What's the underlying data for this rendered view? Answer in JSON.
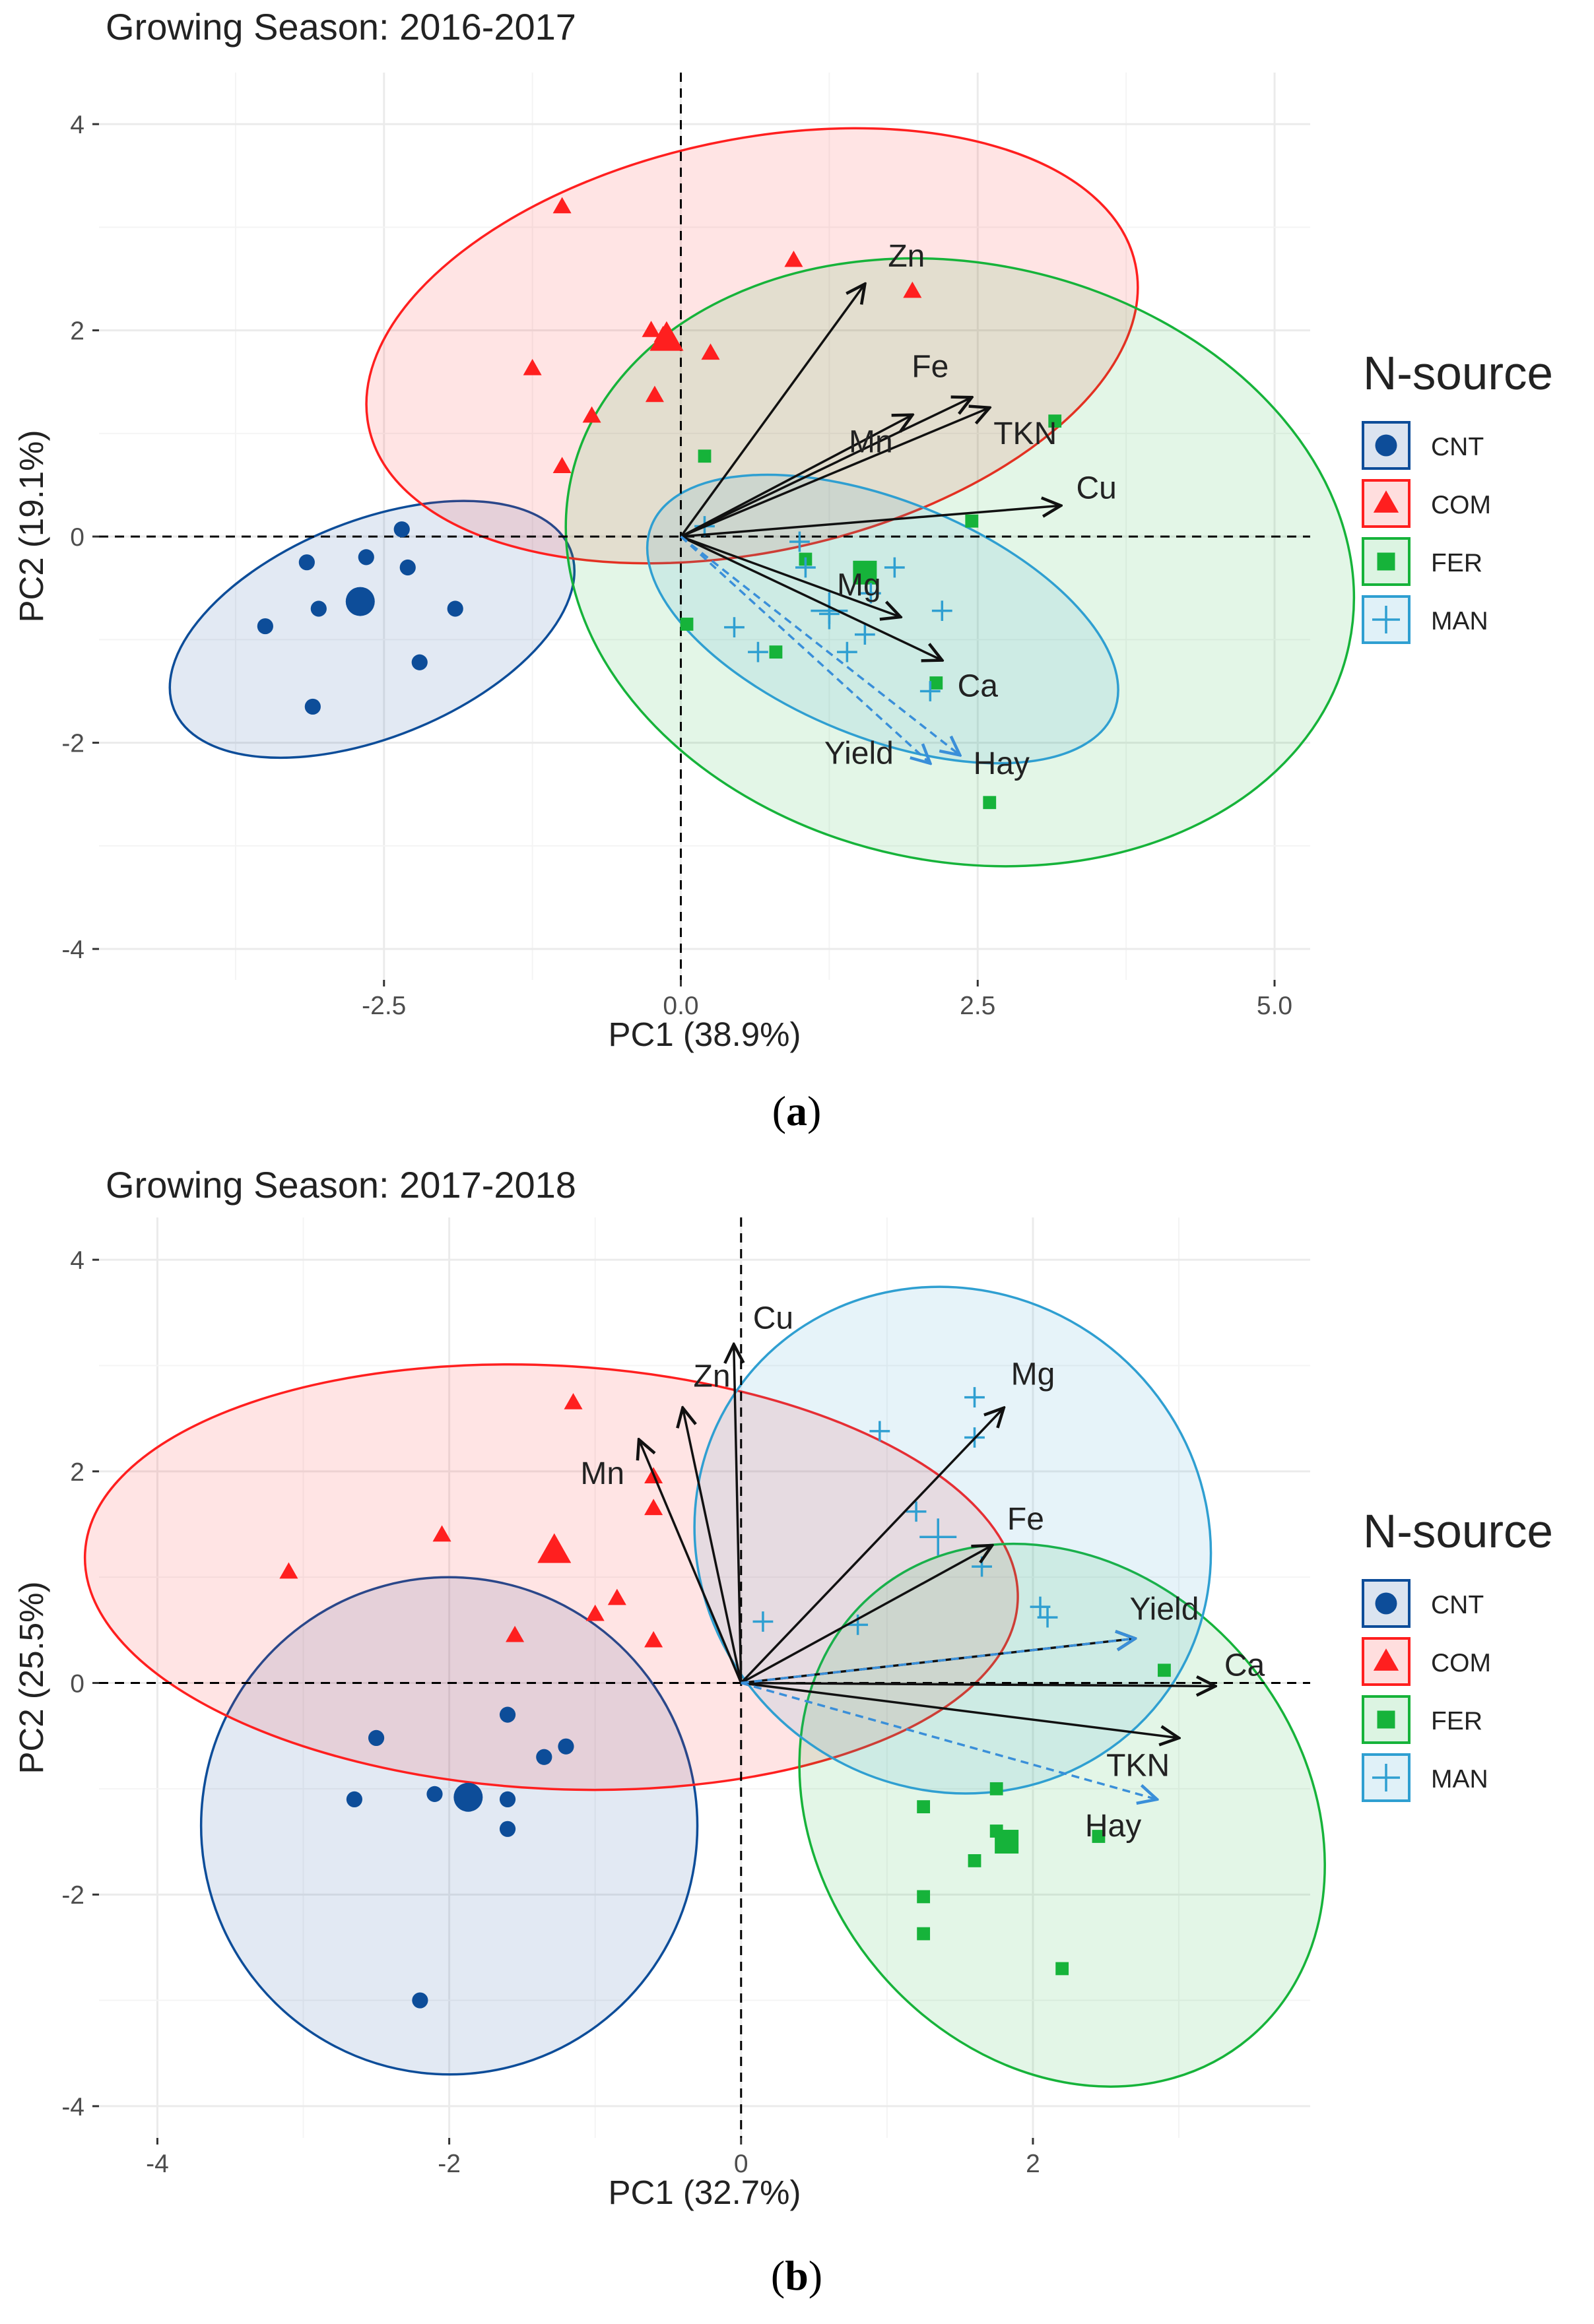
{
  "colors": {
    "CNT": "#0d4d99",
    "COM": "#ff1f1f",
    "FER": "#16b33a",
    "MAN": "#2f9fd1",
    "arrow": "#111111",
    "supplementary": "#3a8fd9"
  },
  "chart_data": [
    {
      "panel": "a",
      "type": "scatter",
      "subtype": "pca-biplot",
      "title": "Growing Season: 2016-2017",
      "caption": {
        "open": "(",
        "letter": "a",
        "close": ")"
      },
      "xlabel": "PC1 (38.9%)",
      "ylabel": "PC2 (19.1%)",
      "xlim": [
        -4.9,
        5.3
      ],
      "ylim": [
        -4.3,
        4.5
      ],
      "xticks": [
        -2.5,
        0.0,
        2.5,
        5.0
      ],
      "xtick_labels": [
        "-2.5",
        "0.0",
        "2.5",
        "5.0"
      ],
      "yticks": [
        -4,
        -2,
        0,
        2,
        4
      ],
      "ytick_labels": [
        "-4",
        "-2",
        "0",
        "2",
        "4"
      ],
      "legend": {
        "title": "N-source",
        "entries": [
          "CNT",
          "COM",
          "FER",
          "MAN"
        ],
        "shapes": [
          "circle",
          "triangle",
          "square",
          "plus"
        ],
        "position": "right"
      },
      "series": [
        {
          "name": "CNT",
          "marker": "circle",
          "points": [
            [
              -2.35,
              0.07
            ],
            [
              -3.15,
              -0.25
            ],
            [
              -2.65,
              -0.2
            ],
            [
              -2.3,
              -0.3
            ],
            [
              -3.05,
              -0.7
            ],
            [
              -1.9,
              -0.7
            ],
            [
              -3.5,
              -0.87
            ],
            [
              -2.2,
              -1.22
            ],
            [
              -3.1,
              -1.65
            ]
          ],
          "centroid": [
            -2.7,
            -0.63
          ],
          "ellipse": {
            "center": [
              -2.6,
              -0.9
            ],
            "rx": 1.8,
            "ry": 1.05,
            "rotation_deg": 22
          }
        },
        {
          "name": "COM",
          "marker": "triangle",
          "points": [
            [
              -1.0,
              3.2
            ],
            [
              0.95,
              2.68
            ],
            [
              1.95,
              2.38
            ],
            [
              -0.25,
              2.0
            ],
            [
              -0.15,
              1.95
            ],
            [
              0.25,
              1.78
            ],
            [
              -1.25,
              1.63
            ],
            [
              -0.22,
              1.37
            ],
            [
              -0.75,
              1.17
            ],
            [
              -1.0,
              0.68
            ]
          ],
          "centroid": [
            -0.12,
            1.92
          ],
          "ellipse": {
            "center": [
              0.6,
              1.85
            ],
            "rx": 3.3,
            "ry": 2.0,
            "rotation_deg": 12
          }
        },
        {
          "name": "FER",
          "marker": "square",
          "points": [
            [
              3.15,
              1.12
            ],
            [
              0.2,
              0.78
            ],
            [
              2.45,
              0.15
            ],
            [
              1.05,
              -0.22
            ],
            [
              1.55,
              -0.35
            ],
            [
              0.05,
              -0.85
            ],
            [
              0.8,
              -1.12
            ],
            [
              2.15,
              -1.42
            ],
            [
              2.6,
              -2.58
            ]
          ],
          "centroid": [
            1.55,
            -0.35
          ],
          "ellipse": {
            "center": [
              2.35,
              -0.25
            ],
            "rx": 3.35,
            "ry": 2.9,
            "rotation_deg": -12
          }
        },
        {
          "name": "MAN",
          "marker": "plus",
          "points": [
            [
              0.2,
              0.1
            ],
            [
              1.0,
              -0.05
            ],
            [
              1.8,
              -0.3
            ],
            [
              1.05,
              -0.3
            ],
            [
              1.6,
              -0.55
            ],
            [
              2.2,
              -0.72
            ],
            [
              1.25,
              -0.75
            ],
            [
              0.45,
              -0.88
            ],
            [
              1.55,
              -0.95
            ],
            [
              0.65,
              -1.12
            ],
            [
              1.4,
              -1.12
            ],
            [
              2.1,
              -1.5
            ]
          ],
          "centroid": [
            1.25,
            -0.72
          ],
          "ellipse": {
            "center": [
              1.7,
              -0.8
            ],
            "rx": 2.1,
            "ry": 1.15,
            "rotation_deg": -22
          }
        }
      ],
      "vectors": [
        {
          "label": "Zn",
          "x": 1.55,
          "y": 2.45,
          "label_xy": [
            1.9,
            2.72
          ]
        },
        {
          "label": "Fe",
          "x": 2.45,
          "y": 1.35,
          "label_xy": [
            2.1,
            1.65
          ]
        },
        {
          "label": "TKN",
          "x": 2.6,
          "y": 1.25,
          "label_xy": [
            2.9,
            1.0
          ]
        },
        {
          "label": "Mn",
          "x": 1.95,
          "y": 1.18,
          "label_xy": [
            1.6,
            0.92
          ]
        },
        {
          "label": "Cu",
          "x": 3.2,
          "y": 0.3,
          "label_xy": [
            3.5,
            0.47
          ]
        },
        {
          "label": "Mg",
          "x": 1.85,
          "y": -0.78,
          "label_xy": [
            1.5,
            -0.47
          ]
        },
        {
          "label": "Ca",
          "x": 2.2,
          "y": -1.2,
          "label_xy": [
            2.5,
            -1.45
          ]
        },
        {
          "label": "Yield",
          "x": 2.1,
          "y": -2.2,
          "label_xy": [
            1.5,
            -2.1
          ],
          "supplementary": true
        },
        {
          "label": "Hay",
          "x": 2.35,
          "y": -2.12,
          "label_xy": [
            2.7,
            -2.2
          ],
          "supplementary": true
        }
      ]
    },
    {
      "panel": "b",
      "type": "scatter",
      "subtype": "pca-biplot",
      "title": "Growing Season: 2017-2018",
      "caption": {
        "open": "(",
        "letter": "b",
        "close": ")"
      },
      "xlabel": "PC1 (32.7%)",
      "ylabel": "PC2 (25.5%)",
      "xlim": [
        -4.4,
        3.9
      ],
      "ylim": [
        -4.3,
        4.4
      ],
      "xticks": [
        -4,
        -2,
        0,
        2
      ],
      "xtick_labels": [
        "-4",
        "-2",
        "0",
        "2"
      ],
      "yticks": [
        -4,
        -2,
        0,
        2,
        4
      ],
      "ytick_labels": [
        "-4",
        "-2",
        "0",
        "2",
        "4"
      ],
      "legend": {
        "title": "N-source",
        "entries": [
          "CNT",
          "COM",
          "FER",
          "MAN"
        ],
        "shapes": [
          "circle",
          "triangle",
          "square",
          "plus"
        ],
        "position": "right"
      },
      "series": [
        {
          "name": "CNT",
          "marker": "circle",
          "points": [
            [
              -2.5,
              -0.52
            ],
            [
              -1.6,
              -0.3
            ],
            [
              -1.35,
              -0.7
            ],
            [
              -1.2,
              -0.6
            ],
            [
              -2.1,
              -1.05
            ],
            [
              -1.6,
              -1.1
            ],
            [
              -2.65,
              -1.1
            ],
            [
              -1.6,
              -1.38
            ],
            [
              -2.2,
              -3.0
            ]
          ],
          "centroid": [
            -1.87,
            -1.08
          ],
          "ellipse": {
            "center": [
              -2.0,
              -1.35
            ],
            "rx": 1.7,
            "ry": 2.35,
            "rotation_deg": 15
          }
        },
        {
          "name": "COM",
          "marker": "triangle",
          "points": [
            [
              -1.15,
              2.65
            ],
            [
              -0.6,
              1.95
            ],
            [
              -2.05,
              1.4
            ],
            [
              -0.6,
              1.65
            ],
            [
              -3.1,
              1.05
            ],
            [
              -0.85,
              0.8
            ],
            [
              -1.0,
              0.65
            ],
            [
              -1.55,
              0.45
            ],
            [
              -0.6,
              0.4
            ]
          ],
          "centroid": [
            -1.28,
            1.25
          ],
          "ellipse": {
            "center": [
              -1.3,
              1.0
            ],
            "rx": 3.2,
            "ry": 2.0,
            "rotation_deg": -3
          }
        },
        {
          "name": "FER",
          "marker": "square",
          "points": [
            [
              2.9,
              0.12
            ],
            [
              1.75,
              -1.0
            ],
            [
              1.25,
              -1.17
            ],
            [
              1.75,
              -1.4
            ],
            [
              2.45,
              -1.45
            ],
            [
              1.85,
              -1.5
            ],
            [
              1.6,
              -1.68
            ],
            [
              1.25,
              -2.02
            ],
            [
              1.25,
              -2.37
            ],
            [
              2.2,
              -2.7
            ]
          ],
          "centroid": [
            1.82,
            -1.5
          ],
          "ellipse": {
            "center": [
              2.2,
              -1.25
            ],
            "rx": 1.65,
            "ry": 2.75,
            "rotation_deg": 40
          }
        },
        {
          "name": "MAN",
          "marker": "plus",
          "points": [
            [
              1.6,
              2.7
            ],
            [
              0.95,
              2.38
            ],
            [
              1.6,
              2.32
            ],
            [
              1.2,
              1.62
            ],
            [
              1.65,
              1.1
            ],
            [
              2.05,
              0.72
            ],
            [
              2.1,
              0.62
            ],
            [
              0.15,
              0.58
            ],
            [
              0.8,
              0.55
            ]
          ],
          "centroid": [
            1.35,
            1.38
          ],
          "ellipse": {
            "center": [
              1.45,
              1.35
            ],
            "rx": 1.8,
            "ry": 2.35,
            "rotation_deg": -35
          }
        }
      ],
      "vectors": [
        {
          "label": "Cu",
          "x": -0.05,
          "y": 3.2,
          "label_xy": [
            0.22,
            3.45
          ]
        },
        {
          "label": "Zn",
          "x": -0.4,
          "y": 2.6,
          "label_xy": [
            -0.2,
            2.9
          ]
        },
        {
          "label": "Mn",
          "x": -0.7,
          "y": 2.3,
          "label_xy": [
            -0.95,
            1.98
          ]
        },
        {
          "label": "Mg",
          "x": 1.8,
          "y": 2.6,
          "label_xy": [
            2.0,
            2.92
          ]
        },
        {
          "label": "Fe",
          "x": 1.72,
          "y": 1.3,
          "label_xy": [
            1.95,
            1.55
          ]
        },
        {
          "label": "Yield",
          "x": 2.7,
          "y": 0.42,
          "label_xy": [
            2.9,
            0.7
          ]
        },
        {
          "label": "Ca",
          "x": 3.25,
          "y": -0.03,
          "label_xy": [
            3.45,
            0.17
          ]
        },
        {
          "label": "TKN",
          "x": 3.0,
          "y": -0.52,
          "label_xy": [
            2.72,
            -0.78
          ]
        },
        {
          "label": "Hay",
          "x": 2.85,
          "y": -1.1,
          "label_xy": [
            2.55,
            -1.35
          ],
          "supplementary": true
        },
        {
          "label": "Yield",
          "x": 2.7,
          "y": 0.42,
          "label_xy": [
            2.9,
            0.7
          ],
          "supplementary": true,
          "duplicate": true
        }
      ]
    }
  ]
}
